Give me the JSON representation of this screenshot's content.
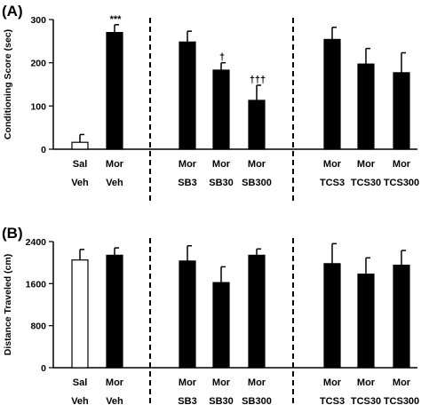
{
  "chart_data": [
    {
      "type": "bar",
      "panel_label": "(A)",
      "ylabel": "Conditioning Score (sec)",
      "ylim": [
        0,
        300
      ],
      "yticks": [
        0,
        100,
        200,
        300
      ],
      "grid": false,
      "categories": [
        "Sal Veh",
        "Mor Veh",
        "Mor SB3",
        "Mor SB30",
        "Mor SB300",
        "Mor TCS3",
        "Mor TCS30",
        "Mor TCS300"
      ],
      "category_lines": [
        [
          "Sal",
          "Veh"
        ],
        [
          "Mor",
          "Veh"
        ],
        [
          "Mor",
          "SB3"
        ],
        [
          "Mor",
          "SB30"
        ],
        [
          "Mor",
          "SB300"
        ],
        [
          "Mor",
          "TCS3"
        ],
        [
          "Mor",
          "TCS30"
        ],
        [
          "Mor",
          "TCS300"
        ]
      ],
      "values": [
        16,
        270,
        248,
        183,
        113,
        254,
        197,
        177
      ],
      "errors": [
        18,
        18,
        25,
        17,
        35,
        28,
        36,
        46
      ],
      "bar_fill": [
        "#ffffff",
        "#000000",
        "#000000",
        "#000000",
        "#000000",
        "#000000",
        "#000000",
        "#000000"
      ],
      "annotations": [
        "",
        "***",
        "",
        "†",
        "†††",
        "",
        "",
        ""
      ],
      "group_dividers_after": [
        2,
        5
      ]
    },
    {
      "type": "bar",
      "panel_label": "(B)",
      "ylabel": "Distance Traveled (cm)",
      "ylim": [
        0,
        2400
      ],
      "yticks": [
        0,
        800,
        1600,
        2400
      ],
      "grid": false,
      "categories": [
        "Sal Veh",
        "Mor Veh",
        "Mor SB3",
        "Mor SB30",
        "Mor SB300",
        "Mor TCS3",
        "Mor TCS30",
        "Mor TCS300"
      ],
      "category_lines": [
        [
          "Sal",
          "Veh"
        ],
        [
          "Mor",
          "Veh"
        ],
        [
          "Mor",
          "SB3"
        ],
        [
          "Mor",
          "SB30"
        ],
        [
          "Mor",
          "SB300"
        ],
        [
          "Mor",
          "TCS3"
        ],
        [
          "Mor",
          "TCS30"
        ],
        [
          "Mor",
          "TCS300"
        ]
      ],
      "values": [
        2050,
        2140,
        2030,
        1620,
        2140,
        1980,
        1780,
        1950
      ],
      "errors": [
        200,
        140,
        290,
        300,
        120,
        380,
        310,
        280
      ],
      "bar_fill": [
        "#ffffff",
        "#000000",
        "#000000",
        "#000000",
        "#000000",
        "#000000",
        "#000000",
        "#000000"
      ],
      "annotations": [
        "",
        "",
        "",
        "",
        "",
        "",
        "",
        ""
      ],
      "group_dividers_after": [
        2,
        5
      ]
    }
  ]
}
